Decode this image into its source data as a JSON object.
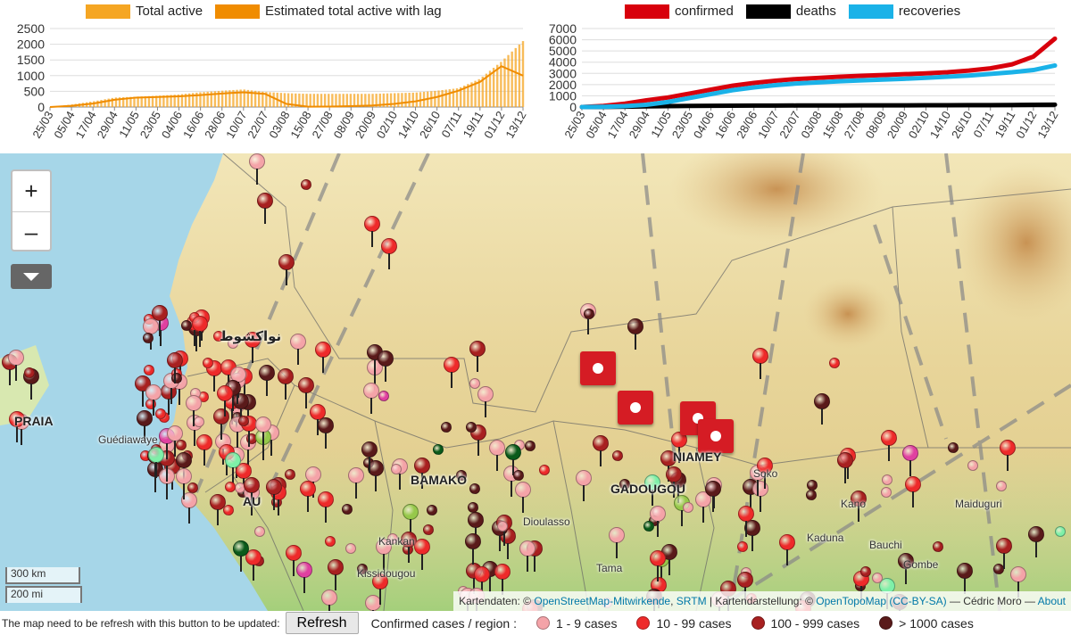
{
  "colors": {
    "active": "#f5a623",
    "active_lag": "#f08c00",
    "confirmed": "#d8000c",
    "deaths": "#000000",
    "recoveries": "#1ab2e8",
    "cat1": "#f4a3a8",
    "cat2": "#ee2a2a",
    "cat3": "#a82020",
    "cat4": "#5a1a1a"
  },
  "chart_data": [
    {
      "type": "bar",
      "legend": [
        "Total active",
        "Estimated total active with lag"
      ],
      "categories": [
        "25/03",
        "05/04",
        "17/04",
        "29/04",
        "11/05",
        "23/05",
        "04/06",
        "16/06",
        "28/06",
        "10/07",
        "22/07",
        "03/08",
        "15/08",
        "27/08",
        "08/09",
        "20/09",
        "02/10",
        "14/10",
        "26/10",
        "07/11",
        "19/11",
        "01/12",
        "13/12"
      ],
      "yticks": [
        0,
        500,
        1000,
        1500,
        2000,
        2500
      ],
      "ylim": [
        0,
        2500
      ],
      "series": [
        {
          "name": "Total active",
          "values": [
            0,
            80,
            180,
            300,
            330,
            360,
            400,
            470,
            520,
            560,
            480,
            440,
            420,
            420,
            420,
            420,
            440,
            460,
            520,
            600,
            900,
            1450,
            2100
          ]
        },
        {
          "name": "Estimated total active with lag",
          "values": [
            0,
            40,
            110,
            230,
            300,
            320,
            340,
            380,
            430,
            470,
            420,
            100,
            10,
            15,
            30,
            50,
            100,
            180,
            320,
            520,
            800,
            1300,
            1000
          ]
        }
      ]
    },
    {
      "type": "line",
      "legend": [
        "confirmed",
        "deaths",
        "recoveries"
      ],
      "categories": [
        "25/03",
        "05/04",
        "17/04",
        "29/04",
        "11/05",
        "23/05",
        "04/06",
        "16/06",
        "28/06",
        "10/07",
        "22/07",
        "03/08",
        "15/08",
        "27/08",
        "08/09",
        "20/09",
        "02/10",
        "14/10",
        "26/10",
        "07/11",
        "19/11",
        "01/12",
        "13/12"
      ],
      "yticks": [
        0,
        1000,
        2000,
        3000,
        4000,
        5000,
        6000,
        7000
      ],
      "ylim": [
        0,
        7000
      ],
      "series": [
        {
          "name": "confirmed",
          "values": [
            0,
            100,
            300,
            600,
            850,
            1200,
            1550,
            1900,
            2150,
            2350,
            2500,
            2600,
            2700,
            2780,
            2850,
            2930,
            3000,
            3100,
            3250,
            3450,
            3800,
            4500,
            6100
          ]
        },
        {
          "name": "deaths",
          "values": [
            0,
            10,
            30,
            60,
            80,
            100,
            110,
            120,
            125,
            130,
            135,
            140,
            140,
            145,
            150,
            150,
            155,
            160,
            165,
            170,
            180,
            195,
            210
          ]
        },
        {
          "name": "recoveries",
          "values": [
            0,
            20,
            80,
            200,
            450,
            800,
            1150,
            1500,
            1750,
            1950,
            2100,
            2200,
            2300,
            2380,
            2450,
            2520,
            2600,
            2700,
            2800,
            2950,
            3100,
            3300,
            3700
          ]
        }
      ]
    }
  ],
  "map": {
    "zoom_in": "+",
    "zoom_out": "–",
    "layers_icon": "layers-dropdown-icon",
    "scale_km": "300 km",
    "scale_mi": "200 mi",
    "attribution": {
      "prefix": "Kartendaten: ©",
      "osm": "OpenStreetMap-Mitwirkende",
      "srtm": "SRTM",
      "mid": "| Kartendarstellung: ©",
      "topo": "OpenTopoMap",
      "license": "(CC-BY-SA)",
      "author": "— Cédric Moro —",
      "about": "About"
    },
    "cities": {
      "praia": "PRAIA",
      "guediawaye": "Guédiawaye",
      "bamako": "BAMAKO",
      "ouagadougou": "GADOUGOU",
      "niamey": "NIAMEY",
      "kankan": "Kankan",
      "kissidougou": "Kissidougou",
      "kano": "Kano",
      "maiduguri": "Maiduguri",
      "sokoto": "Soko",
      "bauchi": "Bauchi",
      "kaduna": "Kaduna",
      "gombe": "Gombe",
      "tamale": "Tama",
      "dioulasso": "Dioulasso",
      "nouakchott_ar": "نواكشوط",
      "bissau": "AU"
    }
  },
  "footer": {
    "note": "The map need to be refresh with this button to be updated:",
    "refresh_label": "Refresh",
    "legend_title": "Confirmed cases / region :",
    "categories": [
      "1 - 9 cases",
      "10 - 99 cases",
      "100 - 999 cases",
      "> 1000 cases"
    ]
  }
}
